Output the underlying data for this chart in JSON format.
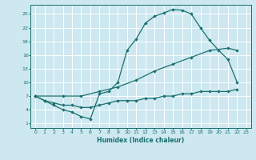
{
  "xlabel": "Humidex (Indice chaleur)",
  "background_color": "#cde8f0",
  "grid_color": "#ffffff",
  "line_color": "#1a7070",
  "xlim": [
    -0.5,
    23.5
  ],
  "ylim": [
    0,
    27
  ],
  "xticks": [
    0,
    1,
    2,
    3,
    4,
    5,
    6,
    7,
    8,
    9,
    10,
    11,
    12,
    13,
    14,
    15,
    16,
    17,
    18,
    19,
    20,
    21,
    22,
    23
  ],
  "yticks": [
    1,
    4,
    7,
    10,
    13,
    16,
    19,
    22,
    25
  ],
  "curve1_x": [
    0,
    1,
    2,
    3,
    4,
    5,
    6,
    7,
    8,
    9,
    10,
    11,
    12,
    13,
    14,
    15,
    16,
    17,
    18,
    19,
    20,
    21,
    22
  ],
  "curve1_y": [
    7,
    6,
    5,
    4,
    3.5,
    2.5,
    2,
    7.5,
    8,
    10,
    17,
    19.5,
    23,
    24.5,
    25.2,
    26,
    25.8,
    25,
    22,
    19.2,
    17,
    15,
    10
  ],
  "curve2_x": [
    0,
    3,
    5,
    7,
    9,
    11,
    13,
    15,
    17,
    19,
    21,
    22
  ],
  "curve2_y": [
    7,
    7,
    7,
    8,
    9,
    10.5,
    12.5,
    14,
    15.5,
    17,
    17.5,
    17
  ],
  "curve3_x": [
    0,
    1,
    2,
    3,
    4,
    5,
    6,
    7,
    8,
    9,
    10,
    11,
    12,
    13,
    14,
    15,
    16,
    17,
    18,
    19,
    20,
    21,
    22
  ],
  "curve3_y": [
    7,
    6,
    5.5,
    5,
    5,
    4.5,
    4.5,
    5,
    5.5,
    6,
    6,
    6,
    6.5,
    6.5,
    7,
    7,
    7.5,
    7.5,
    8,
    8,
    8,
    8,
    8.5
  ]
}
